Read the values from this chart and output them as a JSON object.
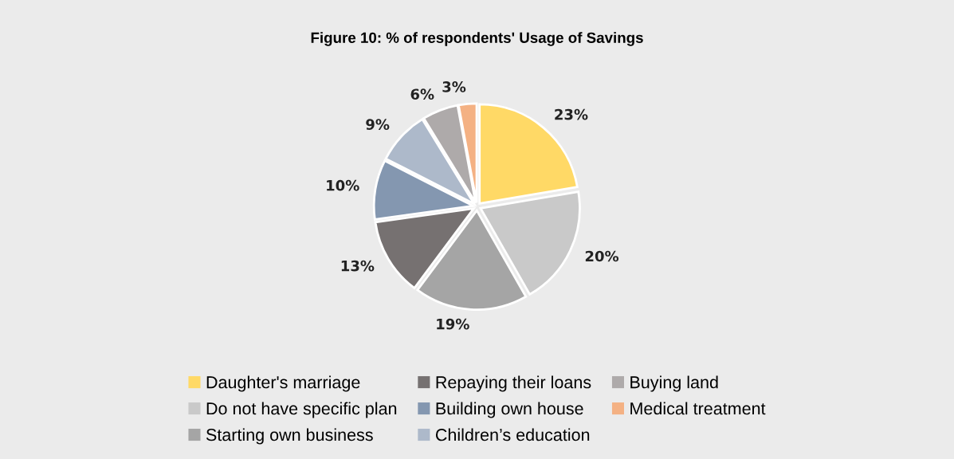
{
  "chart_data": {
    "type": "pie",
    "title": "Figure 10: % of respondents' Usage of Savings",
    "categories": [
      "Daughter's marriage",
      "Do not have specific plan",
      "Starting own business",
      "Repaying their loans",
      "Building own house",
      "Children’s education",
      "Buying land",
      "Medical treatment"
    ],
    "values": [
      23,
      20,
      19,
      13,
      10,
      9,
      6,
      3
    ],
    "colors": [
      "#ffd966",
      "#c9c9c9",
      "#a5a5a5",
      "#767171",
      "#8497b0",
      "#adb9ca",
      "#aeaaaa",
      "#f4b183"
    ],
    "value_labels": [
      "23%",
      "20%",
      "19%",
      "13%",
      "10%",
      "9%",
      "6%",
      "3%"
    ],
    "legend": "bottom"
  }
}
